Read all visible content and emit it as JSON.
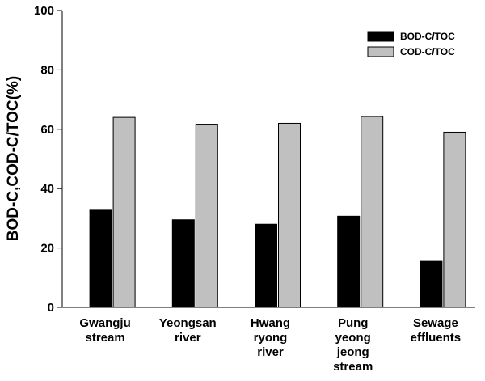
{
  "chart_data": {
    "type": "bar",
    "title": "",
    "xlabel": "",
    "ylabel": "BOD-C,COD-C/TOC(%)",
    "ylim": [
      0,
      100
    ],
    "yticks": [
      0,
      20,
      40,
      60,
      80,
      100
    ],
    "grid": false,
    "legend_position": "top-right",
    "categories": [
      [
        "Gwangju",
        "stream"
      ],
      [
        "Yeongsan",
        "river"
      ],
      [
        "Hwang",
        "ryong",
        "river"
      ],
      [
        "Pung",
        "yeong",
        "jeong",
        "stream"
      ],
      [
        "Sewage",
        "effluents"
      ]
    ],
    "series": [
      {
        "name": "BOD-C/TOC",
        "color": "#000000",
        "values": [
          33,
          29.5,
          28,
          30.7,
          15.5
        ]
      },
      {
        "name": "COD-C/TOC",
        "color": "#c0c0c0",
        "values": [
          64,
          61.7,
          62,
          64.3,
          59
        ]
      }
    ]
  }
}
